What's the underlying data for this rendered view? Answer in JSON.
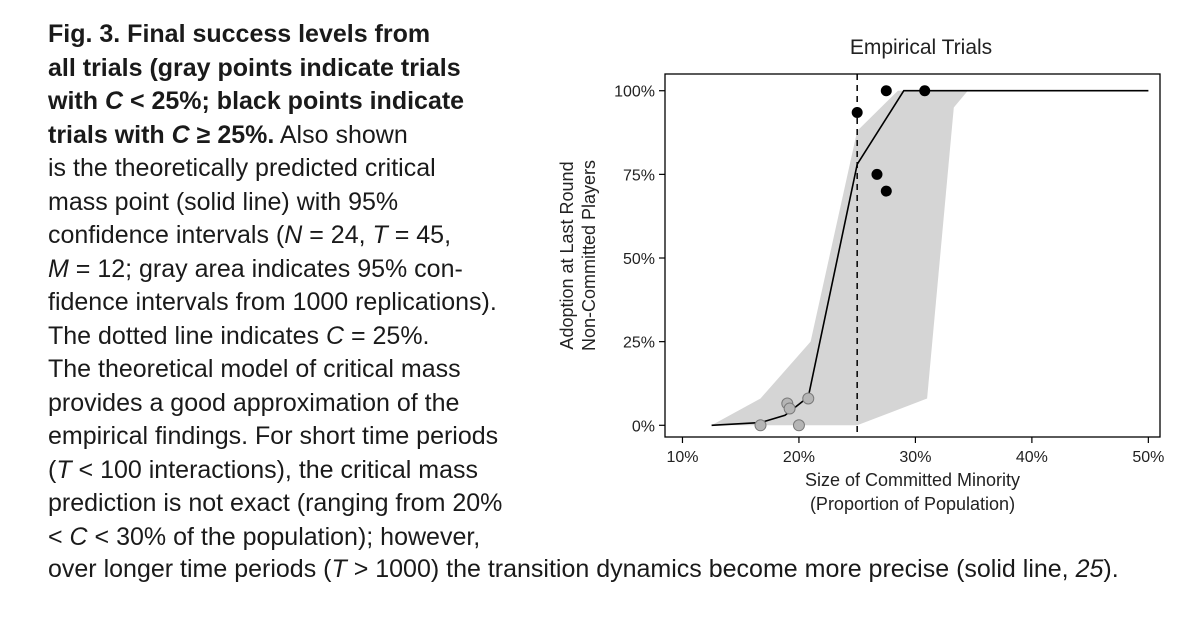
{
  "caption": {
    "lines": [
      {
        "parts": [
          {
            "t": "Fig. 3. Final success levels from",
            "s": "b"
          }
        ]
      },
      {
        "parts": [
          {
            "t": "all trials (gray points indicate trials",
            "s": "b"
          }
        ]
      },
      {
        "parts": [
          {
            "t": "with ",
            "s": "b"
          },
          {
            "t": "C",
            "s": "bi"
          },
          {
            "t": " < 25%; black points indicate",
            "s": "b"
          }
        ]
      },
      {
        "parts": [
          {
            "t": "trials with ",
            "s": "b"
          },
          {
            "t": "C",
            "s": "bi"
          },
          {
            "t": " ≥ 25%.",
            "s": "b"
          },
          {
            "t": " Also shown",
            "s": ""
          }
        ]
      },
      {
        "parts": [
          {
            "t": "is the theoretically predicted critical",
            "s": ""
          }
        ]
      },
      {
        "parts": [
          {
            "t": "mass point (solid line) with 95%",
            "s": ""
          }
        ]
      },
      {
        "parts": [
          {
            "t": "confidence intervals (",
            "s": ""
          },
          {
            "t": "N",
            "s": "i"
          },
          {
            "t": " = 24, ",
            "s": ""
          },
          {
            "t": "T",
            "s": "i"
          },
          {
            "t": " = 45,",
            "s": ""
          }
        ]
      },
      {
        "parts": [
          {
            "t": "M",
            "s": "i"
          },
          {
            "t": " = 12; gray area indicates 95% con-",
            "s": ""
          }
        ]
      },
      {
        "parts": [
          {
            "t": "fidence intervals from 1000 replications).",
            "s": ""
          }
        ]
      },
      {
        "parts": [
          {
            "t": "The dotted line indicates ",
            "s": ""
          },
          {
            "t": "C",
            "s": "i"
          },
          {
            "t": " = 25%.",
            "s": ""
          }
        ]
      },
      {
        "parts": [
          {
            "t": "The theoretical model of critical mass",
            "s": ""
          }
        ]
      },
      {
        "parts": [
          {
            "t": "provides a good approximation of the",
            "s": ""
          }
        ]
      },
      {
        "parts": [
          {
            "t": "empirical findings. For short time periods",
            "s": ""
          }
        ]
      },
      {
        "parts": [
          {
            "t": "(",
            "s": ""
          },
          {
            "t": "T",
            "s": "i"
          },
          {
            "t": " < 100 interactions), the critical mass",
            "s": ""
          }
        ]
      },
      {
        "parts": [
          {
            "t": "prediction is not exact (ranging from 20%",
            "s": ""
          }
        ]
      },
      {
        "parts": [
          {
            "t": "< ",
            "s": ""
          },
          {
            "t": "C",
            "s": "i"
          },
          {
            "t": " < 30% of the population); however,",
            "s": ""
          }
        ]
      }
    ],
    "last_line": [
      {
        "t": "over longer time periods (",
        "s": ""
      },
      {
        "t": "T",
        "s": "i"
      },
      {
        "t": " > 1000) the transition dynamics become more precise (solid line, ",
        "s": ""
      },
      {
        "t": "25",
        "s": "i"
      },
      {
        "t": ").",
        "s": ""
      }
    ]
  },
  "chart_data": {
    "type": "scatter",
    "title": "Empirical Trials",
    "xlabel": [
      "Size of Committed Minority",
      "(Proportion of Population)"
    ],
    "ylabel": [
      "Adoption at Last Round",
      "Non-Committed Players"
    ],
    "xlim": [
      0.085,
      0.51
    ],
    "ylim": [
      -0.035,
      1.05
    ],
    "x_ticks": [
      0.1,
      0.2,
      0.3,
      0.4,
      0.5
    ],
    "x_tick_labels": [
      "10%",
      "20%",
      "30%",
      "40%",
      "50%"
    ],
    "y_ticks": [
      0,
      0.25,
      0.5,
      0.75,
      1.0
    ],
    "y_tick_labels": [
      "0%",
      "25%",
      "50%",
      "75%",
      "100%"
    ],
    "grid": false,
    "critical_line_x": 0.25,
    "colors": {
      "band": "#d5d5d5",
      "gray_point": "#b5b5b5",
      "black_point": "#000000",
      "line": "#000000"
    },
    "band_upper": [
      [
        0.125,
        0.0
      ],
      [
        0.167,
        0.08
      ],
      [
        0.21,
        0.25
      ],
      [
        0.25,
        0.88
      ],
      [
        0.285,
        1.0
      ],
      [
        0.36,
        1.0
      ],
      [
        0.5,
        1.0
      ]
    ],
    "band_lower": [
      [
        0.5,
        1.0
      ],
      [
        0.345,
        1.0
      ],
      [
        0.333,
        0.95
      ],
      [
        0.31,
        0.08
      ],
      [
        0.25,
        0.0
      ],
      [
        0.125,
        0.0
      ]
    ],
    "prediction_line": [
      [
        0.125,
        0.0
      ],
      [
        0.167,
        0.008
      ],
      [
        0.188,
        0.03
      ],
      [
        0.208,
        0.085
      ],
      [
        0.25,
        0.78
      ],
      [
        0.29,
        1.0
      ],
      [
        0.5,
        1.0
      ]
    ],
    "gray_points": [
      [
        0.167,
        0.0
      ],
      [
        0.19,
        0.065
      ],
      [
        0.192,
        0.05
      ],
      [
        0.2,
        0.0
      ],
      [
        0.208,
        0.08
      ]
    ],
    "black_points": [
      [
        0.25,
        0.935
      ],
      [
        0.275,
        1.0
      ],
      [
        0.308,
        1.0
      ],
      [
        0.267,
        0.75
      ],
      [
        0.275,
        0.7
      ]
    ]
  }
}
